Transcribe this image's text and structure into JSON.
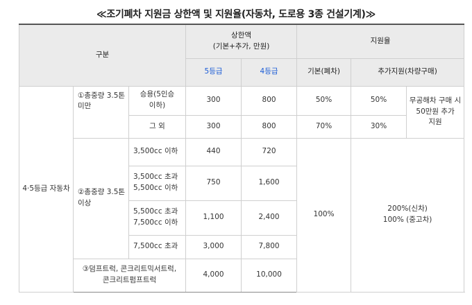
{
  "title": "≪조기폐차 지원금 상한액 및 지원율(자동차, 도로용 3종 건설기계)≫",
  "header": {
    "category": "구분",
    "limit": "상한액\n(기본+추가, 만원)",
    "rate": "지원율",
    "grade5": "5등급",
    "grade4": "4등급",
    "base": "기본(폐차)",
    "extra": "추가지원(차량구매)"
  },
  "body": {
    "group": "4·5등급 자동차",
    "under": {
      "label": "①총중량 3.5톤 미만",
      "passenger": {
        "label": "승용(5인승 이하)",
        "g5": "300",
        "g4": "800",
        "base": "50%",
        "extra": "50%"
      },
      "others": {
        "label": "그 외",
        "g5": "300",
        "g4": "800",
        "base": "70%",
        "extra": "30%"
      },
      "note": "무공해차 구매 시 50만원 추가 지원"
    },
    "over": {
      "label": "②총중량 3.5톤 이상",
      "rows": [
        {
          "label": "3,500cc 이하",
          "g5": "440",
          "g4": "720"
        },
        {
          "label": "3,500cc 초과 5,500cc 이하",
          "g5": "750",
          "g4": "1,600"
        },
        {
          "label": "5,500cc 초과 7,500cc 이하",
          "g5": "1,100",
          "g4": "2,400"
        },
        {
          "label": "7,500cc 초과",
          "g5": "3,000",
          "g4": "7,800"
        }
      ],
      "base": "100%",
      "extra": "200%(신차)\n100% (중고차)"
    },
    "special": {
      "label": "③덤프트럭, 콘크리트믹서트럭, 콘크리트펌프트럭",
      "g5": "4,000",
      "g4": "10,000"
    }
  }
}
